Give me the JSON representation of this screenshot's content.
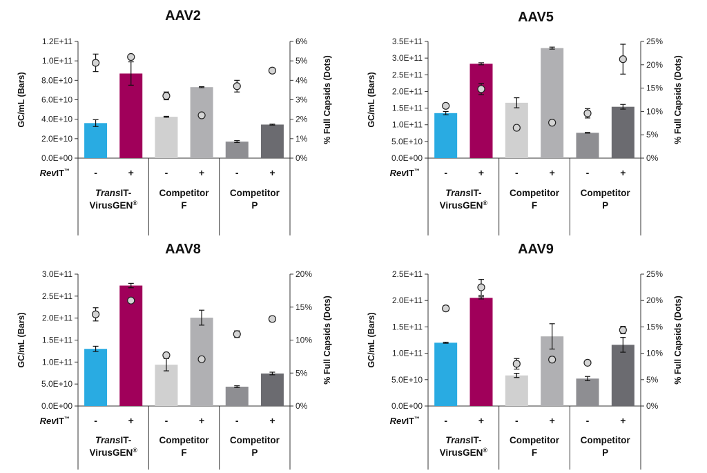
{
  "figure": {
    "row_label_main": "RevIT",
    "row_label_suffix": "™",
    "tm_mark": "™",
    "reg_mark": "®",
    "groups": [
      {
        "line1_italic": "Trans",
        "line1_rest": "IT-",
        "line2": "VirusGEN"
      },
      {
        "line1": "Competitor",
        "line2": "F"
      },
      {
        "line1": "Competitor",
        "line2": "P"
      }
    ],
    "bar_colors": [
      "#29abe2",
      "#a0005a",
      "#d0d0d0",
      "#b0b0b3",
      "#8e8e92",
      "#6b6b70"
    ]
  },
  "chart_data": [
    {
      "type": "bar",
      "title": "AAV2",
      "ylabel": "GC/mL (Bars)",
      "y2label": "% Full Capsids (Dots)",
      "categories": [
        "-",
        "+",
        "-",
        "+",
        "-",
        "+"
      ],
      "ylim": [
        0,
        120000000000
      ],
      "yticks": [
        "0.0E+00",
        "2.0E+10",
        "4.0E+10",
        "6.0E+10",
        "8.0E+10",
        "1.0E+11",
        "1.2E+11"
      ],
      "y2lim": [
        0,
        6
      ],
      "y2ticks": [
        "0%",
        "1%",
        "2%",
        "3%",
        "4%",
        "5%",
        "6%"
      ],
      "series": [
        {
          "values": [
            36000000000,
            87000000000,
            42500000000,
            73000000000,
            17000000000,
            34500000000
          ],
          "errors": [
            3500000000,
            12000000000,
            500000000,
            500000000,
            1000000000,
            500000000
          ]
        },
        {
          "values": [
            4.9,
            5.2,
            3.2,
            2.2,
            3.7,
            4.5
          ],
          "errors": [
            0.45,
            0.1,
            0.2,
            0.0,
            0.3,
            0.0
          ]
        }
      ]
    },
    {
      "type": "bar",
      "title": "AAV5",
      "ylabel": "GC/mL (Bars)",
      "y2label": "% Full Capsids (Dots)",
      "categories": [
        "-",
        "+",
        "-",
        "+",
        "-",
        "+"
      ],
      "ylim": [
        0,
        350000000000
      ],
      "yticks": [
        "0.0E+00",
        "5.0E+10",
        "1.0E+11",
        "1.5E+11",
        "2.0E+11",
        "2.5E+11",
        "3.0E+11",
        "3.5E+11"
      ],
      "y2lim": [
        0,
        25
      ],
      "y2ticks": [
        "0%",
        "5%",
        "10%",
        "15%",
        "20%",
        "25%"
      ],
      "series": [
        {
          "values": [
            135000000000,
            283000000000,
            166000000000,
            330000000000,
            76000000000,
            154000000000
          ],
          "errors": [
            5000000000,
            3000000000,
            15000000000,
            3000000000,
            1000000000,
            7000000000
          ]
        },
        {
          "values": [
            11.2,
            14.8,
            6.5,
            7.6,
            9.6,
            21.2
          ],
          "errors": [
            0.5,
            1.2,
            0.0,
            0.0,
            1.0,
            3.2
          ]
        }
      ]
    },
    {
      "type": "bar",
      "title": "AAV8",
      "ylabel": "GC/mL (Bars)",
      "y2label": "% Full Capsids (Dots)",
      "categories": [
        "-",
        "+",
        "-",
        "+",
        "-",
        "+"
      ],
      "ylim": [
        0,
        300000000000
      ],
      "yticks": [
        "0.0E+00",
        "5.0E+10",
        "1.0E+11",
        "1.5E+11",
        "2.0E+11",
        "2.5E+11",
        "3.0E+11"
      ],
      "y2lim": [
        0,
        20
      ],
      "y2ticks": [
        "0%",
        "5%",
        "10%",
        "15%",
        "20%"
      ],
      "series": [
        {
          "values": [
            130000000000,
            274000000000,
            94000000000,
            201000000000,
            44000000000,
            74000000000
          ],
          "errors": [
            6000000000,
            5000000000,
            14000000000,
            17000000000,
            2000000000,
            3000000000
          ]
        },
        {
          "values": [
            13.9,
            16.0,
            7.7,
            7.1,
            10.9,
            13.2
          ],
          "errors": [
            1.0,
            0.0,
            0.0,
            0.0,
            0.5,
            0.4
          ]
        }
      ]
    },
    {
      "type": "bar",
      "title": "AAV9",
      "ylabel": "GC/mL (Bars)",
      "y2label": "% Full Capsids (Dots)",
      "categories": [
        "-",
        "+",
        "-",
        "+",
        "-",
        "+"
      ],
      "ylim": [
        0,
        250000000000
      ],
      "yticks": [
        "0.0E+00",
        "5.0E+10",
        "1.0E+11",
        "1.5E+11",
        "2.0E+11",
        "2.5E+11"
      ],
      "y2lim": [
        0,
        25
      ],
      "y2ticks": [
        "0%",
        "5%",
        "10%",
        "15%",
        "20%",
        "25%"
      ],
      "series": [
        {
          "values": [
            120000000000,
            205000000000,
            58000000000,
            132000000000,
            52000000000,
            116000000000
          ],
          "errors": [
            1000000000,
            2000000000,
            4000000000,
            24000000000,
            4000000000,
            14000000000
          ]
        },
        {
          "values": [
            18.5,
            22.5,
            8.0,
            8.8,
            8.2,
            14.4
          ],
          "errors": [
            0.5,
            1.5,
            1.0,
            0.5,
            0.0,
            0.7
          ]
        }
      ]
    }
  ]
}
